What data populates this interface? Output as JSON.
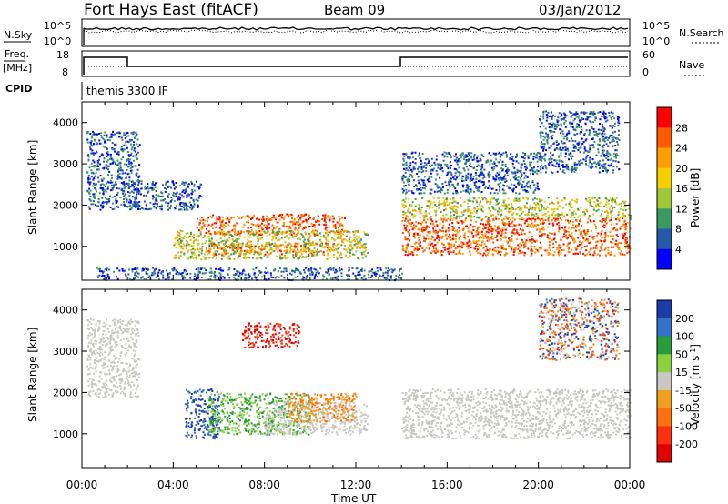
{
  "header": {
    "title": "Fort Hays East (fitACF)",
    "beam": "Beam 09",
    "date": "03/Jan/2012"
  },
  "top_panels": {
    "nsky_label": "N.Sky",
    "nsky_ticks": [
      "10^5",
      "10^0"
    ],
    "nsearch_label": "N.Search",
    "nsearch_ticks": [
      "10^5",
      "10^0"
    ],
    "freq_label": "Freq.",
    "freq_unit": "[MHz]",
    "freq_ticks": [
      "18",
      "8"
    ],
    "nave_label": "Nave",
    "nave_ticks": [
      "60",
      "0"
    ],
    "cpid_label": "CPID",
    "cpid_text": "themis 3300 IF"
  },
  "chart_data": [
    {
      "type": "heatmap",
      "name": "power",
      "ylabel": "Slant Range [km]",
      "xlabel": "Time UT",
      "x_ticks": [
        "00:00",
        "04:00",
        "08:00",
        "12:00",
        "16:00",
        "20:00",
        "00:00"
      ],
      "y_ticks": [
        1000,
        2000,
        3000,
        4000
      ],
      "ylim": [
        180,
        4500
      ],
      "colorbar": {
        "label": "Power [dB]",
        "ticks": [
          "28",
          "24",
          "20",
          "16",
          "12",
          "8",
          "4"
        ],
        "colors": [
          "#ff0000",
          "#ff5a00",
          "#ff9e00",
          "#f5d000",
          "#a0c838",
          "#3c9a60",
          "#2858a8",
          "#0000ff"
        ]
      },
      "echo_regions": [
        {
          "t0": 0.2,
          "t1": 2.5,
          "r0": 1900,
          "r1": 3800,
          "level": "low"
        },
        {
          "t0": 2.0,
          "t1": 5.2,
          "r0": 1900,
          "r1": 2600,
          "level": "low"
        },
        {
          "t0": 5.0,
          "t1": 11.5,
          "r0": 1300,
          "r1": 1800,
          "level": "high"
        },
        {
          "t0": 5.5,
          "t1": 11.0,
          "r0": 800,
          "r1": 1100,
          "level": "high"
        },
        {
          "t0": 4.0,
          "t1": 12.5,
          "r0": 700,
          "r1": 1400,
          "level": "mid"
        },
        {
          "t0": 14.0,
          "t1": 24.0,
          "r0": 800,
          "r1": 1700,
          "level": "high"
        },
        {
          "t0": 14.0,
          "t1": 24.0,
          "r0": 1700,
          "r1": 2200,
          "level": "mid"
        },
        {
          "t0": 14.0,
          "t1": 20.0,
          "r0": 2300,
          "r1": 3300,
          "level": "low"
        },
        {
          "t0": 20.0,
          "t1": 23.5,
          "r0": 2800,
          "r1": 4300,
          "level": "low"
        },
        {
          "t0": 0.5,
          "t1": 14.0,
          "r0": 200,
          "r1": 500,
          "level": "low"
        }
      ]
    },
    {
      "type": "heatmap",
      "name": "velocity",
      "ylabel": "Slant Range [km]",
      "xlabel": "Time UT",
      "x_ticks": [
        "00:00",
        "04:00",
        "08:00",
        "12:00",
        "16:00",
        "20:00",
        "00:00"
      ],
      "y_ticks": [
        1000,
        2000,
        3000,
        4000
      ],
      "ylim": [
        180,
        4500
      ],
      "colorbar": {
        "label": "Velocity [m s^-1]",
        "ticks": [
          "200",
          "100",
          "50",
          "15",
          "-15",
          "-50",
          "-100",
          "-200"
        ],
        "colors": [
          "#1c3ca8",
          "#3474c8",
          "#2a9a3a",
          "#8cd040",
          "#c8c8c0",
          "#f0a020",
          "#ff7010",
          "#ff3010",
          "#e00000"
        ]
      },
      "echo_regions": [
        {
          "t0": 0.2,
          "t1": 2.5,
          "r0": 1900,
          "r1": 3800,
          "level": "ground"
        },
        {
          "t0": 4.5,
          "t1": 6.0,
          "r0": 900,
          "r1": 2100,
          "level": "toward"
        },
        {
          "t0": 5.5,
          "t1": 10.0,
          "r0": 1000,
          "r1": 2000,
          "level": "slow-toward"
        },
        {
          "t0": 8.0,
          "t1": 12.5,
          "r0": 1000,
          "r1": 1800,
          "level": "ground"
        },
        {
          "t0": 9.0,
          "t1": 12.0,
          "r0": 1300,
          "r1": 2000,
          "level": "away"
        },
        {
          "t0": 14.0,
          "t1": 24.0,
          "r0": 900,
          "r1": 2100,
          "level": "ground"
        },
        {
          "t0": 7.0,
          "t1": 9.5,
          "r0": 3100,
          "r1": 3700,
          "level": "fast-away"
        },
        {
          "t0": 20.0,
          "t1": 23.5,
          "r0": 2800,
          "r1": 4300,
          "level": "mixed"
        }
      ]
    }
  ]
}
